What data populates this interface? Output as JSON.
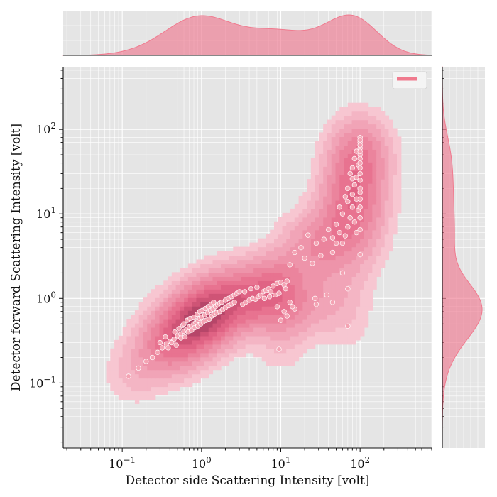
{
  "chart_data": {
    "type": "scatter",
    "title": "",
    "xlabel": "Detector side Scattering Intensity [volt]",
    "ylabel": "Detector forward Scattering Intensity [volt]",
    "xscale": "log",
    "yscale": "log",
    "xlim": [
      0.018,
      800
    ],
    "ylim": [
      0.017,
      550
    ],
    "x_ticks": [
      {
        "value": 0.1,
        "label": "10^{−1}"
      },
      {
        "value": 1,
        "label": "10^{0}"
      },
      {
        "value": 10,
        "label": "10^{1}"
      },
      {
        "value": 100,
        "label": "10^{2}"
      }
    ],
    "y_ticks": [
      {
        "value": 0.1,
        "label": "10^{−1}"
      },
      {
        "value": 1,
        "label": "10^{0}"
      },
      {
        "value": 10,
        "label": "10^{1}"
      },
      {
        "value": 100,
        "label": "10^{2}"
      }
    ],
    "grid": true,
    "legend": {
      "placement": "top-right",
      "entries": [
        ""
      ]
    },
    "colors": {
      "accent": "#f07a8e",
      "kde_fill": "#ef6f88",
      "point": "#f4a3b3",
      "point_edge": "#ffffff",
      "panel": "#e5e5e5",
      "grid": "#ffffff"
    },
    "points": [
      [
        0.12,
        0.12
      ],
      [
        0.16,
        0.15
      ],
      [
        0.2,
        0.18
      ],
      [
        0.24,
        0.2
      ],
      [
        0.28,
        0.23
      ],
      [
        0.32,
        0.26
      ],
      [
        0.36,
        0.29
      ],
      [
        0.4,
        0.31
      ],
      [
        0.45,
        0.33
      ],
      [
        0.5,
        0.36
      ],
      [
        0.55,
        0.38
      ],
      [
        0.6,
        0.41
      ],
      [
        0.65,
        0.43
      ],
      [
        0.7,
        0.46
      ],
      [
        0.75,
        0.47
      ],
      [
        0.8,
        0.5
      ],
      [
        0.85,
        0.52
      ],
      [
        0.9,
        0.55
      ],
      [
        0.95,
        0.58
      ],
      [
        1.0,
        0.6
      ],
      [
        1.1,
        0.64
      ],
      [
        1.2,
        0.68
      ],
      [
        1.3,
        0.72
      ],
      [
        1.4,
        0.75
      ],
      [
        1.5,
        0.8
      ],
      [
        1.6,
        0.84
      ],
      [
        1.7,
        0.88
      ],
      [
        1.8,
        0.9
      ],
      [
        2.0,
        0.95
      ],
      [
        2.2,
        1.0
      ],
      [
        2.4,
        1.05
      ],
      [
        2.6,
        1.1
      ],
      [
        2.8,
        1.15
      ],
      [
        3.0,
        1.2
      ],
      [
        0.38,
        0.26
      ],
      [
        0.42,
        0.3
      ],
      [
        0.48,
        0.28
      ],
      [
        0.55,
        0.34
      ],
      [
        0.62,
        0.35
      ],
      [
        0.68,
        0.4
      ],
      [
        0.75,
        0.42
      ],
      [
        0.82,
        0.45
      ],
      [
        0.9,
        0.47
      ],
      [
        0.98,
        0.5
      ],
      [
        1.05,
        0.53
      ],
      [
        1.15,
        0.55
      ],
      [
        1.25,
        0.57
      ],
      [
        1.35,
        0.62
      ],
      [
        1.45,
        0.65
      ],
      [
        1.55,
        0.68
      ],
      [
        1.7,
        0.7
      ],
      [
        1.85,
        0.74
      ],
      [
        2.0,
        0.78
      ],
      [
        2.2,
        0.82
      ],
      [
        2.4,
        0.86
      ],
      [
        2.6,
        0.9
      ],
      [
        0.3,
        0.3
      ],
      [
        0.35,
        0.35
      ],
      [
        0.46,
        0.4
      ],
      [
        0.58,
        0.48
      ],
      [
        0.66,
        0.55
      ],
      [
        0.72,
        0.58
      ],
      [
        0.8,
        0.6
      ],
      [
        0.88,
        0.65
      ],
      [
        0.95,
        0.7
      ],
      [
        1.02,
        0.72
      ],
      [
        1.12,
        0.76
      ],
      [
        1.22,
        0.8
      ],
      [
        1.32,
        0.85
      ],
      [
        1.42,
        0.9
      ],
      [
        0.52,
        0.44
      ],
      [
        0.6,
        0.5
      ],
      [
        3.3,
        0.85
      ],
      [
        3.6,
        0.9
      ],
      [
        4.0,
        0.95
      ],
      [
        4.4,
        1.0
      ],
      [
        4.8,
        0.98
      ],
      [
        5.2,
        1.05
      ],
      [
        5.6,
        1.1
      ],
      [
        6.0,
        1.2
      ],
      [
        6.5,
        1.25
      ],
      [
        7.0,
        1.3
      ],
      [
        7.5,
        1.2
      ],
      [
        8.0,
        1.4
      ],
      [
        9.0,
        1.5
      ],
      [
        10.0,
        1.55
      ],
      [
        11.0,
        1.45
      ],
      [
        12.0,
        1.6
      ],
      [
        3.5,
        1.2
      ],
      [
        4.2,
        1.3
      ],
      [
        5.0,
        1.35
      ],
      [
        6.2,
        1.0
      ],
      [
        7.2,
        1.05
      ],
      [
        8.5,
        1.1
      ],
      [
        9.5,
        1.15
      ],
      [
        11.5,
        1.3
      ],
      [
        9.0,
        0.8
      ],
      [
        11.0,
        0.7
      ],
      [
        13.0,
        0.9
      ],
      [
        15.0,
        0.75
      ],
      [
        10.0,
        0.55
      ],
      [
        12.0,
        0.62
      ],
      [
        14.0,
        0.8
      ],
      [
        9.5,
        0.25
      ],
      [
        13.0,
        2.5
      ],
      [
        15.0,
        3.5
      ],
      [
        20.0,
        3.0
      ],
      [
        25.0,
        2.6
      ],
      [
        28.0,
        4.5
      ],
      [
        32.0,
        3.2
      ],
      [
        18.0,
        4.0
      ],
      [
        22.0,
        5.6
      ],
      [
        35.0,
        5.0
      ],
      [
        40.0,
        6.5
      ],
      [
        45.0,
        5.2
      ],
      [
        50.0,
        7.5
      ],
      [
        55.0,
        6.0
      ],
      [
        60.0,
        4.5
      ],
      [
        65.0,
        5.5
      ],
      [
        70.0,
        7.0
      ],
      [
        75.0,
        9.0
      ],
      [
        80.0,
        12.0
      ],
      [
        85.0,
        8.0
      ],
      [
        90.0,
        6.0
      ],
      [
        95.0,
        11.0
      ],
      [
        100.0,
        12.0
      ],
      [
        100.0,
        9.0
      ],
      [
        100.0,
        6.5
      ],
      [
        27.0,
        1.0
      ],
      [
        28.0,
        0.85
      ],
      [
        38.0,
        1.1
      ],
      [
        45.0,
        0.9
      ],
      [
        60.0,
        2.0
      ],
      [
        70.0,
        1.3
      ],
      [
        70.0,
        0.47
      ],
      [
        100.0,
        3.3
      ],
      [
        60.0,
        10.0
      ],
      [
        70.0,
        14.0
      ],
      [
        80.0,
        17.0
      ],
      [
        85.0,
        22.0
      ],
      [
        90.0,
        27.0
      ],
      [
        70.0,
        20.0
      ],
      [
        75.0,
        30.0
      ],
      [
        80.0,
        35.0
      ],
      [
        85.0,
        45.0
      ],
      [
        90.0,
        55.0
      ],
      [
        95.0,
        38.0
      ],
      [
        100.0,
        50.0
      ],
      [
        100.0,
        20.0
      ],
      [
        100.0,
        25.0
      ],
      [
        100.0,
        30.0
      ],
      [
        100.0,
        40.0
      ],
      [
        100.0,
        60.0
      ],
      [
        100.0,
        70.0
      ],
      [
        100.0,
        80.0
      ],
      [
        100.0,
        15.0
      ],
      [
        100.0,
        18.0
      ],
      [
        100.0,
        35.0
      ],
      [
        100.0,
        45.0
      ],
      [
        100.0,
        55.0
      ],
      [
        100.0,
        65.0
      ],
      [
        100.0,
        75.0
      ],
      [
        90.0,
        15.0
      ],
      [
        80.0,
        26.0
      ],
      [
        65.0,
        16.0
      ],
      [
        55.0,
        12.0
      ],
      [
        50.0,
        4.5
      ],
      [
        45.0,
        3.5
      ]
    ]
  }
}
